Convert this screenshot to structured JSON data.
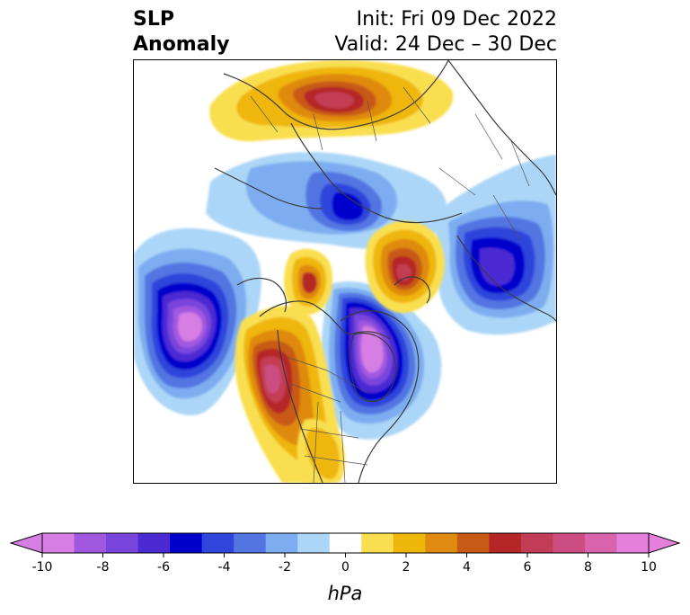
{
  "title": {
    "left_line1": "SLP",
    "left_line2": "Anomaly",
    "right_line1": "Init: Fri 09 Dec 2022",
    "right_line2": "Valid: 24 Dec – 30 Dec"
  },
  "colorbar": {
    "unit": "hPa",
    "ticks": [
      "-10",
      "-8",
      "-6",
      "-4",
      "-2",
      "0",
      "2",
      "4",
      "6",
      "8",
      "10"
    ],
    "colors": [
      "#d77ee4",
      "#a158e0",
      "#7a45dc",
      "#4b2ad4",
      "#0000cc",
      "#2f45dc",
      "#5275e2",
      "#7dadf0",
      "#acd6f7",
      "#ffffff",
      "#f9df4f",
      "#efb60a",
      "#df8a10",
      "#c85a18",
      "#b52525",
      "#c33c55",
      "#cc4e80",
      "#d864ae",
      "#e680dc"
    ],
    "under_color": "#d77ee4",
    "over_color": "#e680dc",
    "extend": "both"
  },
  "map": {
    "projection": "north-polar-stereographic",
    "features": [
      {
        "name": "negative anomaly",
        "region": "Gulf of Alaska / North Pacific",
        "min_hPa": -10
      },
      {
        "name": "negative anomaly",
        "region": "Hudson Bay / eastern Canada",
        "min_hPa": -10
      },
      {
        "name": "negative anomaly",
        "region": "Kara Sea / northern Siberia",
        "min_hPa": -6
      },
      {
        "name": "negative anomaly",
        "region": "Northeast Asia / Sea of Okhotsk",
        "min_hPa": -6
      },
      {
        "name": "positive anomaly",
        "region": "western North America",
        "max_hPa": 8
      },
      {
        "name": "positive anomaly",
        "region": "northern Europe / Scandinavia",
        "max_hPa": 7
      },
      {
        "name": "positive anomaly",
        "region": "East Siberian Sea / Chukotka",
        "max_hPa": 7
      },
      {
        "name": "positive anomaly",
        "region": "Beaufort Sea / Alaska Arctic",
        "max_hPa": 6
      }
    ]
  }
}
